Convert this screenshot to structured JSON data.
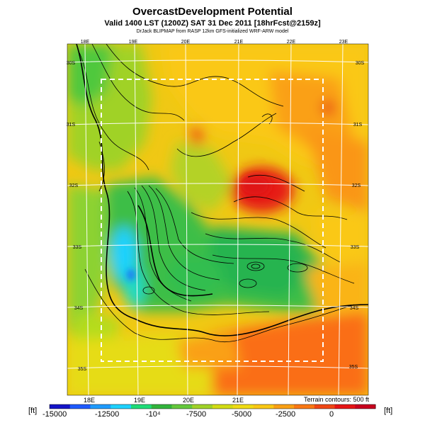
{
  "header": {
    "title": "OvercastDevelopment Potential",
    "subtitle": "Valid 1400 LST (1200Z) SAT 31 Dec 2011 [18hrFcst@2159z]",
    "credit": "DrJack BLIPMAP from RASP 12km GFS-initialized WRF-ARW model"
  },
  "map": {
    "lon_labels_top": [
      "18E",
      "19E",
      "20E",
      "21E",
      "22E",
      "23E"
    ],
    "lon_labels_bottom": [
      "18E",
      "19E",
      "20E",
      "21E"
    ],
    "lat_labels_left": [
      "30S",
      "31S",
      "32S",
      "33S",
      "34S",
      "35S"
    ],
    "lat_labels_right": [
      "30S",
      "31S",
      "32S",
      "33S",
      "34S",
      "35S"
    ],
    "terrain_note": "Terrain contours: 500 ft"
  },
  "colorbar": {
    "unit_left": "[ft]",
    "unit_right": "[ft]",
    "tick_labels": [
      "-15000",
      "-12500",
      "-10⁴",
      "-7500",
      "-5000",
      "-2500",
      "0"
    ],
    "colors": [
      "#1414c8",
      "#1e5aff",
      "#1e9bff",
      "#1ed2ff",
      "#1edc78",
      "#32b43c",
      "#64c83c",
      "#a0d228",
      "#d2dc14",
      "#f0dc14",
      "#fac814",
      "#faa014",
      "#fa7814",
      "#f04614",
      "#e61414",
      "#c8001e"
    ]
  }
}
